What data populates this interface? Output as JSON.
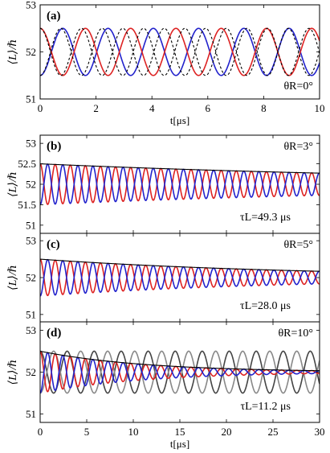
{
  "chart_data": [
    {
      "panel": "(a)",
      "type": "line",
      "ylabel": "⟨L⟩/ℏ",
      "xlabel": "t[μs]",
      "xlim": [
        0,
        10
      ],
      "ylim": [
        51,
        53
      ],
      "xticks": [
        0,
        2,
        4,
        6,
        8,
        10
      ],
      "yticks": [
        51,
        52,
        53
      ],
      "annotation": "θR=0°",
      "series": [
        {
          "color": "#2222cc",
          "style": "solid",
          "start": 51.5,
          "amplitude": 0.5,
          "period_us": 1.62,
          "decay_tau_us": null
        },
        {
          "color": "#dd2222",
          "style": "solid",
          "start": 52.5,
          "amplitude": 0.5,
          "period_us": 1.62,
          "decay_tau_us": null
        },
        {
          "color": "#000000",
          "style": "dashed",
          "start": 51.5,
          "amplitude": 0.5,
          "period_us": 1.48,
          "decay_tau_us": null
        },
        {
          "color": "#000000",
          "style": "dashed",
          "start": 52.5,
          "amplitude": 0.5,
          "period_us": 1.48,
          "decay_tau_us": null
        }
      ]
    },
    {
      "panel": "(b)",
      "type": "line",
      "ylabel": "⟨L⟩/ℏ",
      "xlim": [
        0,
        30
      ],
      "ylim": [
        50.8,
        53.2
      ],
      "xticks": [
        0,
        5,
        10,
        15,
        20,
        25,
        30
      ],
      "yticks": [
        51,
        51.5,
        52,
        52.5,
        53
      ],
      "annotation": "θR=3°",
      "tau_label": "τL=49.3 μs",
      "series": [
        {
          "color": "#dd2222",
          "style": "solid",
          "start": 52.5,
          "amplitude": 0.5,
          "period_us": 1.62,
          "decay_tau_us": 49.3
        },
        {
          "color": "#2222cc",
          "style": "solid",
          "start": 51.5,
          "amplitude": 0.5,
          "period_us": 1.62,
          "decay_tau_us": 49.3
        },
        {
          "color": "#000000",
          "style": "envelope",
          "start": 52.5,
          "amplitude": 0.5,
          "decay_tau_us": 49.3
        }
      ]
    },
    {
      "panel": "(c)",
      "type": "line",
      "ylabel": "⟨L⟩/ℏ",
      "xlim": [
        0,
        30
      ],
      "ylim": [
        50.8,
        53.2
      ],
      "xticks": [
        0,
        5,
        10,
        15,
        20,
        25,
        30
      ],
      "yticks": [
        51,
        52,
        53
      ],
      "annotation": "θR=5°",
      "tau_label": "τL=28.0 μs",
      "series": [
        {
          "color": "#dd2222",
          "style": "solid",
          "start": 52.5,
          "amplitude": 0.5,
          "period_us": 1.62,
          "decay_tau_us": 28.0
        },
        {
          "color": "#2222cc",
          "style": "solid",
          "start": 51.5,
          "amplitude": 0.5,
          "period_us": 1.62,
          "decay_tau_us": 28.0
        },
        {
          "color": "#000000",
          "style": "envelope",
          "start": 52.5,
          "amplitude": 0.5,
          "decay_tau_us": 28.0
        }
      ]
    },
    {
      "panel": "(d)",
      "type": "line",
      "ylabel": "⟨L⟩/ℏ",
      "xlabel": "t[μs]",
      "xlim": [
        0,
        30
      ],
      "ylim": [
        50.8,
        53.2
      ],
      "xticks": [
        0,
        5,
        10,
        15,
        20,
        25,
        30
      ],
      "yticks": [
        51,
        52,
        53
      ],
      "annotation": "θR=10°",
      "tau_label": "τL=11.2 μs",
      "series": [
        {
          "color": "#444444",
          "style": "solid",
          "start": 52.5,
          "amplitude": 0.5,
          "period_us": 2.9,
          "decay_tau_us": null
        },
        {
          "color": "#888888",
          "style": "solid",
          "start": 51.5,
          "amplitude": 0.5,
          "period_us": 2.9,
          "decay_tau_us": null
        },
        {
          "color": "#dd2222",
          "style": "solid",
          "start": 52.5,
          "amplitude": 0.5,
          "period_us": 1.62,
          "decay_tau_us": 11.2
        },
        {
          "color": "#2222cc",
          "style": "solid",
          "start": 51.5,
          "amplitude": 0.5,
          "period_us": 1.62,
          "decay_tau_us": 11.2
        },
        {
          "color": "#000000",
          "style": "envelope",
          "start": 52.5,
          "amplitude": 0.5,
          "decay_tau_us": 11.2
        }
      ]
    }
  ]
}
